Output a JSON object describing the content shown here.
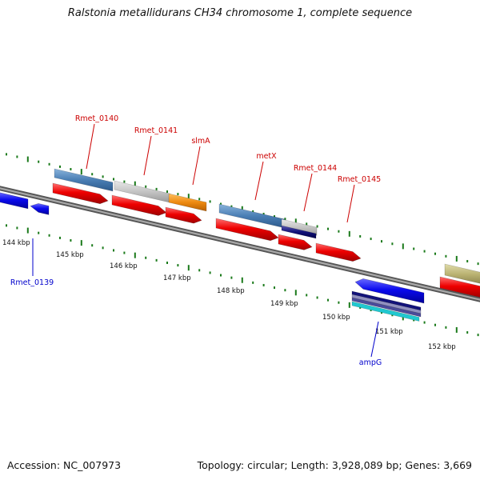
{
  "header": {
    "title": "Ralstonia metallidurans CH34 chromosome 1, complete sequence"
  },
  "footer": {
    "accession": "Accession: NC_007973",
    "summary": "Topology: circular; Length: 3,928,089 bp; Genes: 3,669"
  },
  "axis": {
    "ticks": [
      "144 kbp",
      "145 kbp",
      "146 kbp",
      "147 kbp",
      "148 kbp",
      "149 kbp",
      "150 kbp",
      "151 kbp",
      "152 kbp"
    ]
  },
  "labels": {
    "forward": [
      "Rmet_0140",
      "Rmet_0141",
      "slmA",
      "metX",
      "Rmet_0144",
      "Rmet_0145"
    ],
    "reverse": [
      "Rmet_0139",
      "ampG"
    ]
  },
  "colors": {
    "forward_label": "#cc0000",
    "reverse_label": "#0000cc",
    "cds": "#ee0000",
    "reverse_cds": "#0a0aee",
    "backbone": "#777777",
    "tick": "#1a7a1a",
    "steel": "#4a7eb4",
    "silver": "#c4c4c4",
    "orange": "#ee8a10",
    "navy": "#12127a",
    "cyan": "#20c8d0",
    "olive": "#b8b070"
  }
}
